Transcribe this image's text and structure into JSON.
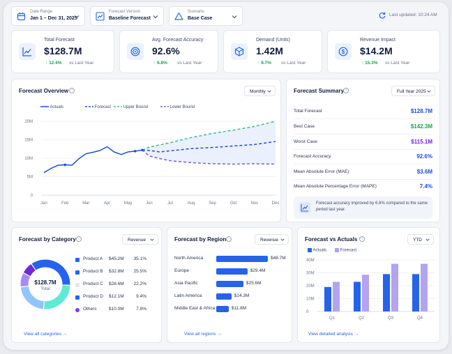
{
  "filters": [
    {
      "label": "Date Range",
      "value": "Jan 1 – Dec 31, 2025",
      "icon": "calendar-icon"
    },
    {
      "label": "Forecast Version",
      "value": "Baseline Forecast",
      "icon": "trend-chart-icon"
    },
    {
      "label": "Scenario",
      "value": "Base Case",
      "icon": "scenario-icon"
    }
  ],
  "last_updated": "Last updated: 10:24 AM",
  "kpis": [
    {
      "label": "Total Forecast",
      "value": "$128.7M",
      "change": "12.4%",
      "vs": "vs Last Year",
      "icon": "line-trend-icon"
    },
    {
      "label": "Avg. Forecast Accuracy",
      "value": "92.6%",
      "change": "6.8%",
      "vs": "vs Last Year",
      "icon": "target-icon"
    },
    {
      "label": "Demand (Units)",
      "value": "1.42M",
      "change": "9.7%",
      "vs": "vs Last Year",
      "icon": "cube-icon"
    },
    {
      "label": "Revenue Impact",
      "value": "$14.2M",
      "change": "15.3%",
      "vs": "vs Last Year",
      "icon": "dollar-icon"
    }
  ],
  "overview": {
    "title": "Forecast Overview",
    "select": "Monthly",
    "legend": [
      "Actuals",
      "Forecast",
      "Upper Bound",
      "Lower Bound"
    ]
  },
  "summary": {
    "title": "Forecast Summary",
    "select": "Full Year 2025",
    "rows": [
      {
        "label": "Total Forecast",
        "value": "$128.7M",
        "color": "#1d4ed8"
      },
      {
        "label": "Best Case",
        "value": "$142.3M",
        "color": "#16a34a"
      },
      {
        "label": "Worst Case",
        "value": "$115.1M",
        "color": "#6d28d9"
      },
      {
        "label": "Forecast Accuracy",
        "value": "92.6%",
        "color": "#1d4ed8"
      },
      {
        "label": "Mean Absolute Error (MAE)",
        "value": "$3.6M",
        "color": "#1d4ed8"
      },
      {
        "label": "Mean Absolute Percentage Error (MAPE)",
        "value": "7.4%",
        "color": "#1d4ed8"
      }
    ],
    "note": "Forecast accuracy improved by 6.8% compared to the same period last year."
  },
  "category": {
    "title": "Forecast by Category",
    "select": "Revenue",
    "center_value": "$128.7M",
    "center_label": "Total",
    "items": [
      {
        "name": "Product A",
        "value": "$45.2M",
        "pct": "35.1%",
        "share": 35.1,
        "color": "#2563eb"
      },
      {
        "name": "Product B",
        "value": "$32.8M",
        "pct": "25.5%",
        "share": 25.5,
        "color": "#5eead4"
      },
      {
        "name": "Product C",
        "value": "$28.6M",
        "pct": "22.2%",
        "share": 22.2,
        "color": "#93c5fd"
      },
      {
        "name": "Product D",
        "value": "$12.1M",
        "pct": "9.4%",
        "share": 9.4,
        "color": "#a78bfa"
      },
      {
        "name": "Others",
        "value": "$10.0M",
        "pct": "7.8%",
        "share": 7.8,
        "color": "#6d28d9"
      }
    ],
    "view_all": "View all categories"
  },
  "region": {
    "title": "Forecast by Region",
    "select": "Revenue",
    "items": [
      {
        "name": "North America",
        "value": "$48.7M",
        "amount": 48.7
      },
      {
        "name": "Europe",
        "value": "$29.4M",
        "amount": 29.4
      },
      {
        "name": "Asia Pacific",
        "value": "$25.6M",
        "amount": 25.6
      },
      {
        "name": "Latin America",
        "value": "$14.3M",
        "amount": 14.3
      },
      {
        "name": "Middle East & Africa",
        "value": "$11.8M",
        "amount": 11.8
      }
    ],
    "view_all": "View all regions"
  },
  "fva": {
    "title": "Forecast vs Actuals",
    "select": "YTD",
    "legend": [
      "Actuals",
      "Forecast"
    ],
    "view_all": "View detailed analysis"
  },
  "chart_data": [
    {
      "type": "line",
      "x": [
        "Jan",
        "Feb",
        "Mar",
        "Apr",
        "May",
        "Jun",
        "Jul",
        "Aug",
        "Sep",
        "Oct",
        "Nov",
        "Dec"
      ],
      "yticks": [
        "0",
        "5M",
        "10M",
        "15M",
        "20M"
      ],
      "ylim": [
        0,
        20
      ],
      "series": [
        {
          "name": "Actuals",
          "x": [
            0,
            0.33,
            0.67,
            1,
            1.33,
            1.67,
            2,
            2.33,
            2.67,
            3,
            3.33,
            3.67,
            4,
            4.33,
            4.67
          ],
          "values": [
            6.1,
            7.2,
            8.1,
            8.2,
            8.1,
            9.9,
            11.2,
            11.6,
            12.1,
            13.1,
            11.7,
            11.0,
            11.7,
            11.9,
            12.2
          ],
          "color": "#1d4ed8"
        },
        {
          "name": "Forecast",
          "x": [
            4.67,
            5,
            5.5,
            6,
            7,
            8,
            9,
            10,
            11
          ],
          "values": [
            12.2,
            12.1,
            11.7,
            12.0,
            12.6,
            12.9,
            13.3,
            13.7,
            14.5
          ],
          "color": "#1d4ed8"
        },
        {
          "name": "Upper Bound",
          "x": [
            4.67,
            5,
            6,
            7,
            8,
            9,
            10,
            11
          ],
          "values": [
            12.2,
            13.0,
            14.2,
            15.6,
            16.7,
            17.6,
            18.6,
            20.0
          ],
          "color": "#3bbf85"
        },
        {
          "name": "Lower Bound",
          "x": [
            4.67,
            5,
            5.5,
            6,
            7,
            8,
            9,
            10,
            11
          ],
          "values": [
            12.2,
            10.6,
            9.9,
            9.3,
            8.8,
            8.5,
            8.4,
            8.5,
            8.4
          ],
          "color": "#7c5cd6"
        }
      ],
      "grid": true,
      "legend_position": "top-left"
    },
    {
      "type": "pie",
      "categories": [
        "Product A",
        "Product B",
        "Product C",
        "Product D",
        "Others"
      ],
      "values": [
        45.2,
        32.8,
        28.6,
        12.1,
        10.0
      ]
    },
    {
      "type": "bar",
      "categories": [
        "North America",
        "Europe",
        "Asia Pacific",
        "Latin America",
        "Middle East & Africa"
      ],
      "values": [
        48.7,
        29.4,
        25.6,
        14.3,
        11.8
      ]
    },
    {
      "type": "bar",
      "categories": [
        "Q1",
        "Q2",
        "Q3",
        "Q4"
      ],
      "yticks": [
        "0",
        "10M",
        "20M",
        "30M",
        "40M"
      ],
      "ylim": [
        0,
        40
      ],
      "series": [
        {
          "name": "Actuals",
          "values": [
            19,
            23,
            29,
            29
          ],
          "color": "#2563eb"
        },
        {
          "name": "Forecast",
          "values": [
            23,
            28.5,
            37,
            37
          ],
          "color": "#b4a3f0"
        }
      ],
      "legend_position": "top-left"
    }
  ]
}
